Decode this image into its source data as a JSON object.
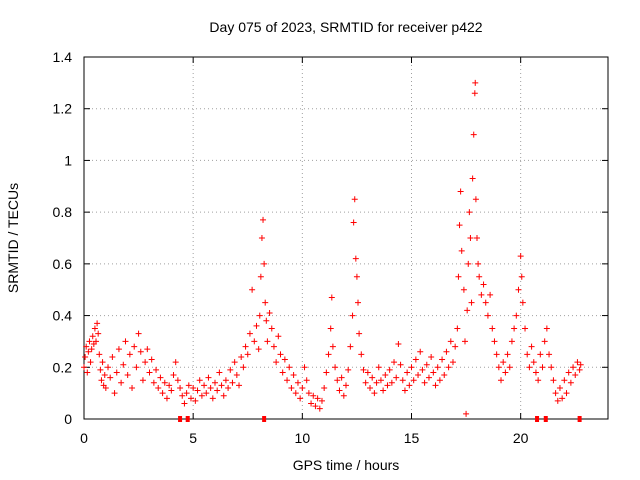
{
  "chart_data": {
    "type": "scatter",
    "title": "Day 075 of 2023, SRMTID for receiver p422",
    "xlabel": "GPS time / hours",
    "ylabel": "SRMTID / TECUs",
    "xlim": [
      0,
      24
    ],
    "ylim": [
      0,
      1.4
    ],
    "x_ticks": [
      0,
      5,
      10,
      15,
      20
    ],
    "x_tick_labels": [
      "0",
      "5",
      "10",
      "15",
      "20"
    ],
    "y_ticks": [
      0,
      0.2,
      0.4,
      0.6,
      0.8,
      1.0,
      1.2,
      1.4
    ],
    "y_tick_labels": [
      "0",
      "0.2",
      "0.4",
      "0.6",
      "0.8",
      "1",
      "1.2",
      "1.4"
    ],
    "grid": true,
    "marker": "+",
    "series": [
      {
        "name": "SRMTID",
        "color": "#ff0000",
        "points": [
          [
            0.0,
            0.2
          ],
          [
            0.05,
            0.24
          ],
          [
            0.1,
            0.28
          ],
          [
            0.15,
            0.18
          ],
          [
            0.2,
            0.26
          ],
          [
            0.25,
            0.3
          ],
          [
            0.3,
            0.22
          ],
          [
            0.35,
            0.27
          ],
          [
            0.4,
            0.32
          ],
          [
            0.45,
            0.29
          ],
          [
            0.5,
            0.35
          ],
          [
            0.55,
            0.3
          ],
          [
            0.6,
            0.37
          ],
          [
            0.65,
            0.33
          ],
          [
            0.7,
            0.25
          ],
          [
            0.75,
            0.19
          ],
          [
            0.8,
            0.15
          ],
          [
            0.85,
            0.22
          ],
          [
            0.9,
            0.13
          ],
          [
            0.95,
            0.17
          ],
          [
            1.0,
            0.12
          ],
          [
            1.1,
            0.2
          ],
          [
            1.2,
            0.16
          ],
          [
            1.3,
            0.24
          ],
          [
            1.4,
            0.1
          ],
          [
            1.5,
            0.18
          ],
          [
            1.6,
            0.27
          ],
          [
            1.7,
            0.14
          ],
          [
            1.8,
            0.21
          ],
          [
            1.9,
            0.3
          ],
          [
            2.0,
            0.17
          ],
          [
            2.1,
            0.25
          ],
          [
            2.2,
            0.12
          ],
          [
            2.3,
            0.28
          ],
          [
            2.4,
            0.2
          ],
          [
            2.5,
            0.33
          ],
          [
            2.6,
            0.26
          ],
          [
            2.7,
            0.15
          ],
          [
            2.8,
            0.22
          ],
          [
            2.9,
            0.27
          ],
          [
            3.0,
            0.18
          ],
          [
            3.1,
            0.23
          ],
          [
            3.2,
            0.14
          ],
          [
            3.3,
            0.19
          ],
          [
            3.4,
            0.12
          ],
          [
            3.5,
            0.16
          ],
          [
            3.6,
            0.1
          ],
          [
            3.7,
            0.14
          ],
          [
            3.8,
            0.08
          ],
          [
            3.9,
            0.13
          ],
          [
            4.0,
            0.11
          ],
          [
            4.1,
            0.17
          ],
          [
            4.2,
            0.22
          ],
          [
            4.3,
            0.15
          ],
          [
            4.4,
            0.12
          ],
          [
            4.5,
            0.09
          ],
          [
            4.6,
            0.06
          ],
          [
            4.7,
            0.1
          ],
          [
            4.8,
            0.13
          ],
          [
            4.9,
            0.08
          ],
          [
            5.0,
            0.12
          ],
          [
            5.1,
            0.07
          ],
          [
            5.2,
            0.11
          ],
          [
            5.3,
            0.15
          ],
          [
            5.4,
            0.09
          ],
          [
            5.5,
            0.13
          ],
          [
            5.6,
            0.1
          ],
          [
            5.7,
            0.16
          ],
          [
            5.8,
            0.12
          ],
          [
            5.9,
            0.08
          ],
          [
            6.0,
            0.14
          ],
          [
            6.1,
            0.11
          ],
          [
            6.2,
            0.18
          ],
          [
            6.3,
            0.13
          ],
          [
            6.4,
            0.09
          ],
          [
            6.5,
            0.15
          ],
          [
            6.6,
            0.12
          ],
          [
            6.7,
            0.19
          ],
          [
            6.8,
            0.14
          ],
          [
            6.9,
            0.22
          ],
          [
            7.0,
            0.17
          ],
          [
            7.1,
            0.13
          ],
          [
            7.2,
            0.24
          ],
          [
            7.3,
            0.2
          ],
          [
            7.4,
            0.28
          ],
          [
            7.5,
            0.25
          ],
          [
            7.6,
            0.33
          ],
          [
            7.7,
            0.5
          ],
          [
            7.8,
            0.3
          ],
          [
            7.9,
            0.36
          ],
          [
            8.0,
            0.27
          ],
          [
            8.05,
            0.4
          ],
          [
            8.1,
            0.55
          ],
          [
            8.15,
            0.7
          ],
          [
            8.2,
            0.77
          ],
          [
            8.25,
            0.6
          ],
          [
            8.3,
            0.45
          ],
          [
            8.35,
            0.38
          ],
          [
            8.4,
            0.3
          ],
          [
            8.5,
            0.41
          ],
          [
            8.6,
            0.35
          ],
          [
            8.7,
            0.28
          ],
          [
            8.8,
            0.22
          ],
          [
            8.9,
            0.32
          ],
          [
            9.0,
            0.25
          ],
          [
            9.1,
            0.18
          ],
          [
            9.2,
            0.23
          ],
          [
            9.3,
            0.15
          ],
          [
            9.4,
            0.2
          ],
          [
            9.5,
            0.12
          ],
          [
            9.6,
            0.17
          ],
          [
            9.7,
            0.1
          ],
          [
            9.8,
            0.14
          ],
          [
            9.9,
            0.08
          ],
          [
            10.0,
            0.12
          ],
          [
            10.1,
            0.2
          ],
          [
            10.2,
            0.15
          ],
          [
            10.3,
            0.1
          ],
          [
            10.4,
            0.06
          ],
          [
            10.5,
            0.09
          ],
          [
            10.6,
            0.05
          ],
          [
            10.7,
            0.08
          ],
          [
            10.8,
            0.04
          ],
          [
            10.9,
            0.07
          ],
          [
            11.0,
            0.12
          ],
          [
            11.1,
            0.18
          ],
          [
            11.2,
            0.25
          ],
          [
            11.3,
            0.35
          ],
          [
            11.35,
            0.47
          ],
          [
            11.4,
            0.28
          ],
          [
            11.5,
            0.2
          ],
          [
            11.6,
            0.15
          ],
          [
            11.7,
            0.11
          ],
          [
            11.8,
            0.16
          ],
          [
            11.9,
            0.09
          ],
          [
            12.0,
            0.13
          ],
          [
            12.1,
            0.19
          ],
          [
            12.2,
            0.28
          ],
          [
            12.3,
            0.4
          ],
          [
            12.35,
            0.76
          ],
          [
            12.4,
            0.85
          ],
          [
            12.45,
            0.62
          ],
          [
            12.5,
            0.55
          ],
          [
            12.55,
            0.45
          ],
          [
            12.6,
            0.33
          ],
          [
            12.7,
            0.25
          ],
          [
            12.8,
            0.19
          ],
          [
            12.9,
            0.14
          ],
          [
            13.0,
            0.18
          ],
          [
            13.1,
            0.12
          ],
          [
            13.2,
            0.16
          ],
          [
            13.3,
            0.1
          ],
          [
            13.4,
            0.14
          ],
          [
            13.5,
            0.2
          ],
          [
            13.6,
            0.15
          ],
          [
            13.7,
            0.11
          ],
          [
            13.8,
            0.17
          ],
          [
            13.9,
            0.13
          ],
          [
            14.0,
            0.19
          ],
          [
            14.1,
            0.14
          ],
          [
            14.2,
            0.22
          ],
          [
            14.3,
            0.16
          ],
          [
            14.4,
            0.29
          ],
          [
            14.5,
            0.21
          ],
          [
            14.6,
            0.15
          ],
          [
            14.7,
            0.11
          ],
          [
            14.8,
            0.18
          ],
          [
            14.9,
            0.13
          ],
          [
            15.0,
            0.2
          ],
          [
            15.1,
            0.15
          ],
          [
            15.2,
            0.23
          ],
          [
            15.3,
            0.17
          ],
          [
            15.4,
            0.26
          ],
          [
            15.5,
            0.19
          ],
          [
            15.6,
            0.14
          ],
          [
            15.7,
            0.21
          ],
          [
            15.8,
            0.16
          ],
          [
            15.9,
            0.24
          ],
          [
            16.0,
            0.18
          ],
          [
            16.1,
            0.13
          ],
          [
            16.2,
            0.2
          ],
          [
            16.3,
            0.15
          ],
          [
            16.4,
            0.23
          ],
          [
            16.5,
            0.17
          ],
          [
            16.6,
            0.26
          ],
          [
            16.7,
            0.2
          ],
          [
            16.8,
            0.3
          ],
          [
            16.9,
            0.22
          ],
          [
            17.0,
            0.28
          ],
          [
            17.1,
            0.35
          ],
          [
            17.15,
            0.55
          ],
          [
            17.2,
            0.75
          ],
          [
            17.25,
            0.88
          ],
          [
            17.3,
            0.65
          ],
          [
            17.4,
            0.5
          ],
          [
            17.45,
            0.3
          ],
          [
            17.5,
            0.02
          ],
          [
            17.55,
            0.42
          ],
          [
            17.6,
            0.6
          ],
          [
            17.65,
            0.8
          ],
          [
            17.7,
            0.7
          ],
          [
            17.75,
            0.45
          ],
          [
            17.8,
            0.93
          ],
          [
            17.85,
            1.1
          ],
          [
            17.9,
            1.26
          ],
          [
            17.92,
            1.3
          ],
          [
            17.95,
            0.85
          ],
          [
            18.0,
            0.7
          ],
          [
            18.05,
            0.6
          ],
          [
            18.1,
            0.55
          ],
          [
            18.2,
            0.48
          ],
          [
            18.3,
            0.52
          ],
          [
            18.4,
            0.45
          ],
          [
            18.5,
            0.4
          ],
          [
            18.6,
            0.48
          ],
          [
            18.7,
            0.35
          ],
          [
            18.8,
            0.3
          ],
          [
            18.9,
            0.25
          ],
          [
            19.0,
            0.2
          ],
          [
            19.1,
            0.15
          ],
          [
            19.2,
            0.22
          ],
          [
            19.3,
            0.18
          ],
          [
            19.4,
            0.25
          ],
          [
            19.5,
            0.2
          ],
          [
            19.6,
            0.3
          ],
          [
            19.7,
            0.35
          ],
          [
            19.8,
            0.4
          ],
          [
            19.9,
            0.5
          ],
          [
            20.0,
            0.63
          ],
          [
            20.05,
            0.55
          ],
          [
            20.1,
            0.45
          ],
          [
            20.2,
            0.35
          ],
          [
            20.3,
            0.25
          ],
          [
            20.4,
            0.2
          ],
          [
            20.5,
            0.28
          ],
          [
            20.6,
            0.22
          ],
          [
            20.7,
            0.18
          ],
          [
            20.8,
            0.15
          ],
          [
            20.9,
            0.25
          ],
          [
            21.0,
            0.2
          ],
          [
            21.1,
            0.3
          ],
          [
            21.2,
            0.35
          ],
          [
            21.3,
            0.25
          ],
          [
            21.4,
            0.2
          ],
          [
            21.5,
            0.15
          ],
          [
            21.6,
            0.1
          ],
          [
            21.7,
            0.07
          ],
          [
            21.8,
            0.12
          ],
          [
            21.9,
            0.08
          ],
          [
            22.0,
            0.15
          ],
          [
            22.1,
            0.1
          ],
          [
            22.2,
            0.18
          ],
          [
            22.3,
            0.14
          ],
          [
            22.4,
            0.2
          ],
          [
            22.5,
            0.17
          ],
          [
            22.6,
            0.22
          ],
          [
            22.7,
            0.19
          ],
          [
            22.75,
            0.21
          ]
        ],
        "zero_points": [
          4.4,
          4.75,
          8.25,
          20.75,
          21.15,
          22.7
        ]
      }
    ]
  }
}
